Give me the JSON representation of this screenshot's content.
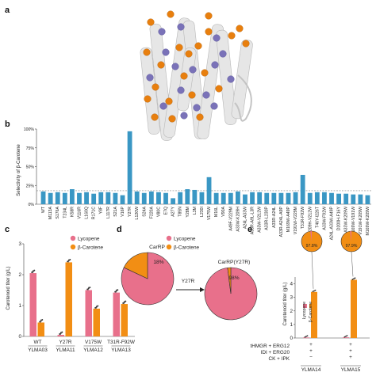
{
  "panels": {
    "a": "a",
    "b": "b",
    "c": "c",
    "d": "d",
    "e": "e"
  },
  "colors": {
    "bar_b": "#3a97c4",
    "lycopene": "#e8708b",
    "carotene": "#f28e14",
    "highlight": "#e03a3a",
    "helix": "#e6e6e6",
    "sphere_orange": "#e87f0e",
    "sphere_purple": "#7a72b8"
  },
  "chart_data": [
    {
      "panel": "b",
      "type": "bar",
      "ylabel": "Selectivity of β-Carotene",
      "yticks": [
        "0%",
        "25%",
        "50%",
        "75%",
        "100%"
      ],
      "ylim": [
        0,
        100
      ],
      "reference_line": 18,
      "categories": [
        "WT",
        "M113A",
        "S176A",
        "T234L",
        "K58R",
        "V116R",
        "L160Q",
        "R171C",
        "Y8F",
        "L117R",
        "S21A",
        "V16P",
        "Y27R",
        "L120W",
        "S24A",
        "F220A",
        "V80C",
        "E7Q",
        "A27Y",
        "T85N",
        "Y28M",
        "L3M",
        "L230I",
        "V175W",
        "M16L",
        "V90A",
        "A49F-V229M",
        "A33W-K209H",
        "A24L-A33W",
        "A33R-A9L-L3R",
        "A33W-V212W",
        "A33R-L230P",
        "A33R-A24L",
        "A33R-A24L-A9P",
        "M169W-A49P",
        "V191W-V229M",
        "T31R-F92W",
        "K209H-V212W",
        "T46Y-I226T",
        "A33W-F92W",
        "A24L-A33W-A49P",
        "D200H-F16Y",
        "A33W-K209W",
        "M169W-V191W",
        "V191W-K209W",
        "M169W-K209W"
      ],
      "highlighted": [
        "Y27R",
        "V175W",
        "T31R-F92W"
      ],
      "values": [
        17,
        15,
        16,
        15,
        20,
        15,
        16,
        14,
        16,
        16,
        15,
        12,
        97,
        17,
        15,
        17,
        16,
        15,
        8,
        16,
        20,
        19,
        16,
        36,
        15,
        15,
        15,
        17,
        13,
        16,
        16,
        15,
        15,
        15,
        15,
        16,
        39,
        15,
        16,
        16,
        15,
        14,
        14,
        13,
        13,
        12
      ]
    },
    {
      "panel": "c",
      "type": "bar",
      "ylabel": "Carotenoid titer (g/L)",
      "yticks": [
        "0",
        "1",
        "2",
        "3"
      ],
      "ylim": [
        0,
        3
      ],
      "legend": [
        "Lycopene",
        "β-Carotene"
      ],
      "categories": [
        "WT",
        "Y27R",
        "V175W",
        "T31R-F92W"
      ],
      "strains": [
        "YLMA03",
        "YLMA11",
        "YLMA12",
        "YLMA13"
      ],
      "series": [
        {
          "name": "Lycopene",
          "values": [
            2.05,
            0.05,
            1.5,
            1.42
          ]
        },
        {
          "name": "β-Carotene",
          "values": [
            0.45,
            2.4,
            0.9,
            1.05
          ]
        }
      ]
    },
    {
      "panel": "d",
      "type": "pie",
      "legend": [
        "Lycopene",
        "β-Carotene"
      ],
      "pies": [
        {
          "title": "CarRP",
          "values": [
            82,
            18
          ],
          "label": "18%"
        },
        {
          "title": "CarRP(Y27R)",
          "values": [
            2,
            98
          ],
          "label": "98%"
        }
      ],
      "arrow_label": "Y27R"
    },
    {
      "panel": "e",
      "type": "bar",
      "ylabel": "Carotenoid titer (g/L)",
      "yticks": [
        "0",
        "1",
        "2",
        "3",
        "4"
      ],
      "ylim": [
        0,
        4.5
      ],
      "legend": [
        "Lycopene",
        "β-Carotene"
      ],
      "categories": [
        "YLMA14",
        "YLMA15"
      ],
      "series": [
        {
          "name": "Lycopene",
          "values": [
            0.04,
            0.05
          ]
        },
        {
          "name": "β-Carotene",
          "values": [
            3.4,
            4.3
          ]
        }
      ],
      "pie_labels": [
        "97.8%",
        "97.9%"
      ],
      "pie_values": [
        97.8,
        97.9
      ],
      "conditions": [
        {
          "label": "tHMGR + ERG12",
          "marks": [
            "+",
            "+"
          ]
        },
        {
          "label": "IDI + ERG20",
          "marks": [
            "+",
            "+"
          ]
        },
        {
          "label": "CK + IPK",
          "marks": [
            "−",
            "+"
          ]
        }
      ]
    }
  ]
}
